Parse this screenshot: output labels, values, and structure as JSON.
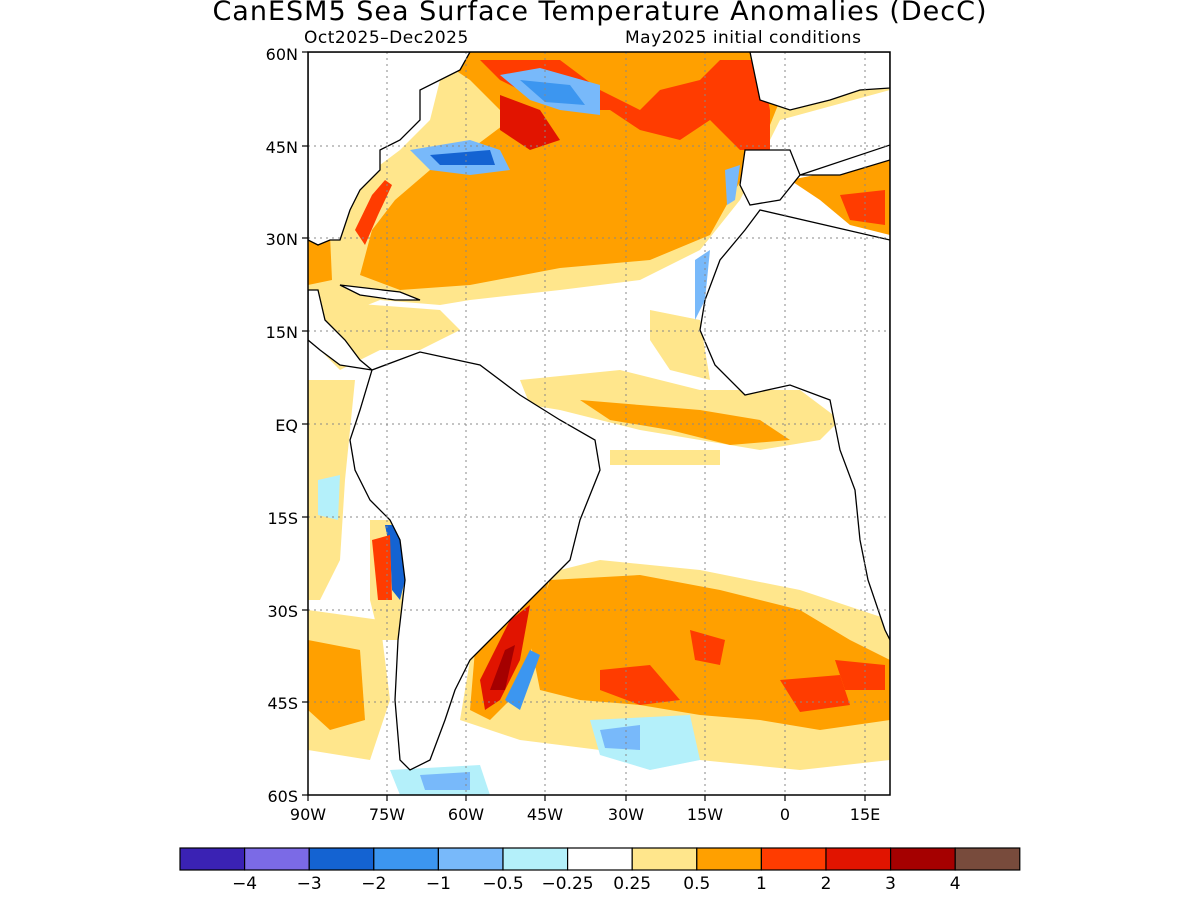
{
  "title": "CanESM5 Sea Surface Temperature Anomalies (DecC)",
  "subtitle_left": "Oct2025–Dec2025",
  "subtitle_right": "May2025 initial conditions",
  "map": {
    "lat_ticks": [
      "60N",
      "45N",
      "30N",
      "15N",
      "EQ",
      "15S",
      "30S",
      "45S",
      "60S"
    ],
    "lon_ticks": [
      "90W",
      "75W",
      "60W",
      "45W",
      "30W",
      "15W",
      "0",
      "15E"
    ]
  },
  "colorbar": {
    "colors": [
      "#3a22b4",
      "#7b6ae6",
      "#1463d2",
      "#3c96f0",
      "#78b9fa",
      "#b4f0fa",
      "#ffffff",
      "#ffe68c",
      "#ffa000",
      "#ff3c00",
      "#e11400",
      "#a50000",
      "#784b3c"
    ],
    "labels": [
      "−4",
      "−3",
      "−2",
      "−1",
      "−0.5",
      "−0.25",
      "0.25",
      "0.5",
      "1",
      "2",
      "3",
      "4"
    ]
  }
}
